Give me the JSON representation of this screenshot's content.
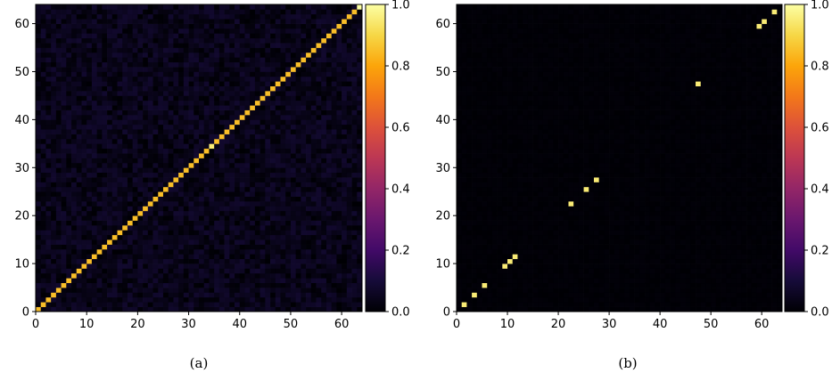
{
  "chart_data": [
    {
      "type": "heatmap",
      "caption": "(a)",
      "n": 64,
      "xlim": [
        0,
        64
      ],
      "ylim": [
        0,
        64
      ],
      "x_ticks": [
        0,
        10,
        20,
        30,
        40,
        50,
        60
      ],
      "y_ticks": [
        0,
        10,
        20,
        30,
        40,
        50,
        60
      ],
      "colormap": "inferno",
      "colorbar": {
        "range": [
          0.0,
          1.0
        ],
        "ticks": [
          "0.0",
          "0.2",
          "0.4",
          "0.6",
          "0.8",
          "1.0"
        ]
      },
      "pattern": "diagonal",
      "diagonal_value": 0.85,
      "highlight_cells": [
        [
          63,
          63,
          1.0
        ],
        [
          34,
          34,
          0.95
        ]
      ],
      "background_range": [
        0.0,
        0.08
      ]
    },
    {
      "type": "heatmap",
      "caption": "(b)",
      "n": 64,
      "xlim": [
        0,
        64
      ],
      "ylim": [
        0,
        64
      ],
      "x_ticks": [
        0,
        10,
        20,
        30,
        40,
        50,
        60
      ],
      "y_ticks": [
        0,
        10,
        20,
        30,
        40,
        50,
        60
      ],
      "colormap": "inferno",
      "colorbar": {
        "range": [
          0.0,
          1.0
        ],
        "ticks": [
          "0.0",
          "0.2",
          "0.4",
          "0.6",
          "0.8",
          "1.0"
        ]
      },
      "pattern": "sparse",
      "bright_cells": [
        [
          1,
          1
        ],
        [
          3,
          3
        ],
        [
          5,
          5
        ],
        [
          9,
          9
        ],
        [
          10,
          10
        ],
        [
          11,
          11
        ],
        [
          22,
          22
        ],
        [
          25,
          25
        ],
        [
          27,
          27
        ],
        [
          47,
          47
        ],
        [
          59,
          59
        ],
        [
          60,
          60
        ],
        [
          62,
          62
        ]
      ],
      "bright_value": 0.95,
      "background_range": [
        0.0,
        0.01
      ]
    }
  ]
}
